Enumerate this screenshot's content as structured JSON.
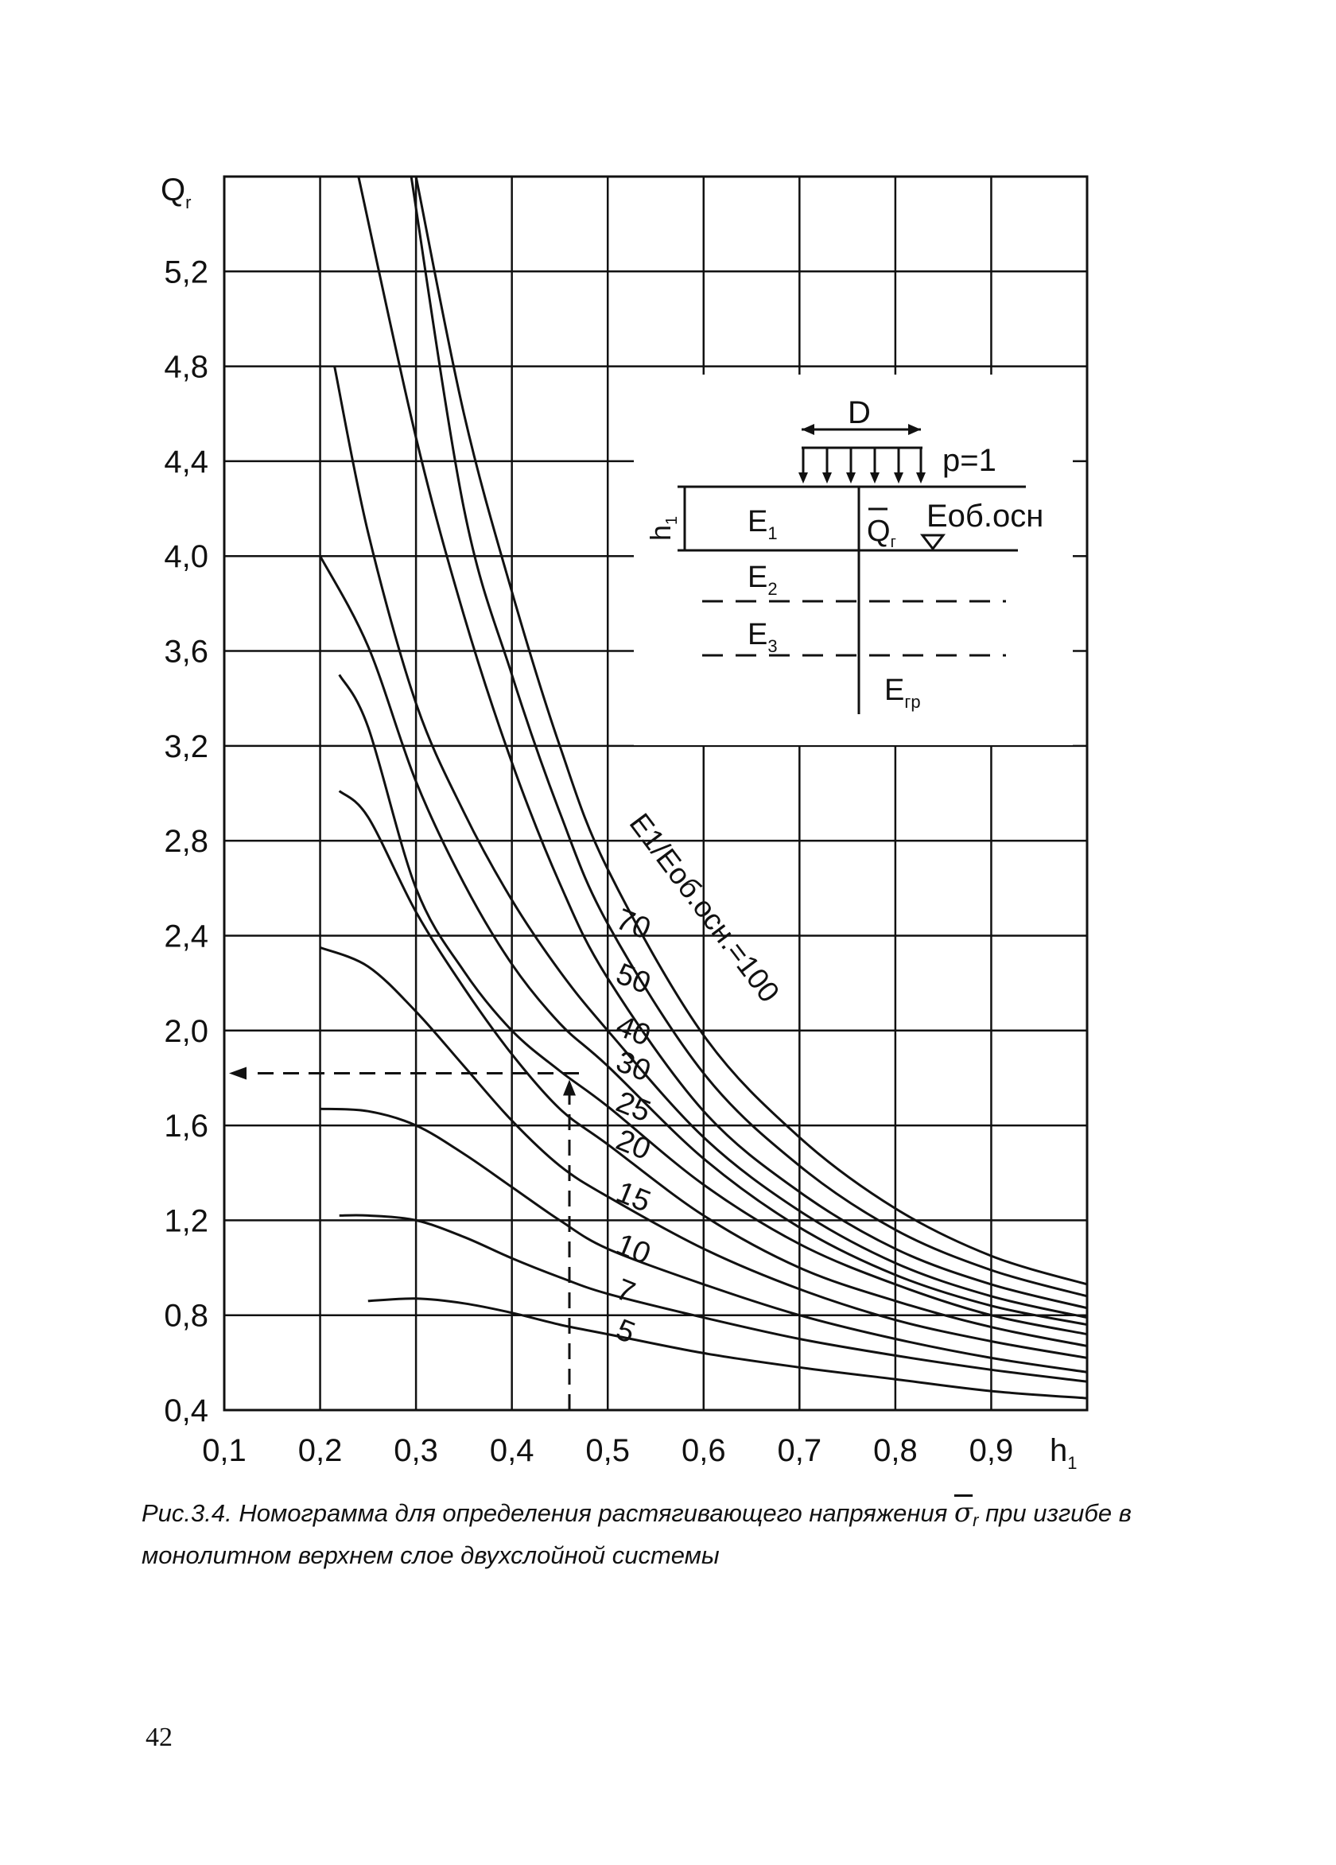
{
  "chart_data": {
    "type": "line",
    "y_axis_label": "Q",
    "y_axis_label_sub": "r",
    "x_axis_label": "h",
    "x_axis_label_sub": "1",
    "xlim": [
      0.1,
      1.0
    ],
    "ylim": [
      0.4,
      5.6
    ],
    "grid": true,
    "x_ticks": [
      0.1,
      0.2,
      0.3,
      0.4,
      0.5,
      0.6,
      0.7,
      0.8,
      0.9
    ],
    "x_tick_labels": [
      "0,1",
      "0,2",
      "0,3",
      "0,4",
      "0,5",
      "0,6",
      "0,7",
      "0,8",
      "0,9"
    ],
    "y_ticks": [
      0.4,
      0.8,
      1.2,
      1.6,
      2.0,
      2.4,
      2.8,
      3.2,
      3.6,
      4.0,
      4.4,
      4.8,
      5.2
    ],
    "y_tick_labels": [
      "0,4",
      "0,8",
      "1,2",
      "1,6",
      "2,0",
      "2,4",
      "2,8",
      "3,2",
      "3,6",
      "4,0",
      "4,4",
      "4,8",
      "5,2"
    ],
    "series_label": "E1/Eоб.осн.=100",
    "series": [
      {
        "name": "100",
        "x": [
          0.3,
          0.35,
          0.4,
          0.45,
          0.5,
          0.6,
          0.7,
          0.8,
          0.9,
          1.0
        ],
        "y": [
          5.6,
          4.6,
          3.85,
          3.2,
          2.68,
          1.98,
          1.55,
          1.25,
          1.05,
          0.93
        ]
      },
      {
        "name": "70",
        "x": [
          0.295,
          0.35,
          0.4,
          0.45,
          0.5,
          0.6,
          0.7,
          0.8,
          0.9,
          1.0
        ],
        "y": [
          5.6,
          4.2,
          3.5,
          2.92,
          2.45,
          1.82,
          1.43,
          1.16,
          0.99,
          0.88
        ]
      },
      {
        "name": "50",
        "x": [
          0.24,
          0.3,
          0.35,
          0.4,
          0.45,
          0.5,
          0.6,
          0.7,
          0.8,
          0.9,
          1.0
        ],
        "y": [
          5.6,
          4.5,
          3.75,
          3.13,
          2.62,
          2.22,
          1.66,
          1.32,
          1.08,
          0.93,
          0.83
        ]
      },
      {
        "name": "40",
        "x": [
          0.215,
          0.25,
          0.3,
          0.35,
          0.4,
          0.45,
          0.5,
          0.6,
          0.7,
          0.8,
          0.9,
          1.0
        ],
        "y": [
          4.8,
          4.1,
          3.38,
          2.92,
          2.55,
          2.25,
          2.0,
          1.55,
          1.24,
          1.02,
          0.88,
          0.79
        ]
      },
      {
        "name": "30",
        "x": [
          0.2,
          0.25,
          0.3,
          0.35,
          0.4,
          0.45,
          0.5,
          0.6,
          0.7,
          0.8,
          0.9,
          1.0
        ],
        "y": [
          4.0,
          3.62,
          3.05,
          2.62,
          2.28,
          2.03,
          1.85,
          1.46,
          1.17,
          0.97,
          0.84,
          0.76
        ]
      },
      {
        "name": "25",
        "x": [
          0.22,
          0.25,
          0.3,
          0.35,
          0.4,
          0.45,
          0.5,
          0.6,
          0.7,
          0.8,
          0.9,
          1.0
        ],
        "y": [
          3.5,
          3.28,
          2.6,
          2.25,
          2.0,
          1.83,
          1.68,
          1.35,
          1.1,
          0.93,
          0.8,
          0.72
        ]
      },
      {
        "name": "20",
        "x": [
          0.22,
          0.25,
          0.3,
          0.35,
          0.4,
          0.45,
          0.5,
          0.6,
          0.7,
          0.8,
          0.9,
          1.0
        ],
        "y": [
          3.01,
          2.9,
          2.5,
          2.18,
          1.9,
          1.67,
          1.52,
          1.22,
          1.0,
          0.86,
          0.75,
          0.67
        ]
      },
      {
        "name": "15",
        "x": [
          0.2,
          0.25,
          0.3,
          0.35,
          0.4,
          0.45,
          0.5,
          0.6,
          0.7,
          0.8,
          0.9,
          1.0
        ],
        "y": [
          2.35,
          2.27,
          2.08,
          1.85,
          1.62,
          1.43,
          1.3,
          1.08,
          0.91,
          0.78,
          0.69,
          0.62
        ]
      },
      {
        "name": "10",
        "x": [
          0.2,
          0.25,
          0.3,
          0.35,
          0.4,
          0.45,
          0.5,
          0.6,
          0.7,
          0.8,
          0.9,
          1.0
        ],
        "y": [
          1.67,
          1.66,
          1.6,
          1.48,
          1.34,
          1.2,
          1.08,
          0.93,
          0.8,
          0.7,
          0.62,
          0.56
        ]
      },
      {
        "name": "7",
        "x": [
          0.22,
          0.25,
          0.3,
          0.35,
          0.4,
          0.45,
          0.5,
          0.6,
          0.7,
          0.8,
          0.9,
          1.0
        ],
        "y": [
          1.22,
          1.22,
          1.2,
          1.13,
          1.04,
          0.96,
          0.89,
          0.79,
          0.7,
          0.63,
          0.57,
          0.52
        ]
      },
      {
        "name": "5",
        "x": [
          0.25,
          0.3,
          0.35,
          0.4,
          0.45,
          0.5,
          0.6,
          0.7,
          0.8,
          0.9,
          1.0
        ],
        "y": [
          0.86,
          0.87,
          0.85,
          0.81,
          0.76,
          0.72,
          0.64,
          0.58,
          0.53,
          0.48,
          0.45
        ]
      }
    ],
    "example_path": {
      "h1": 0.46,
      "Qr": 1.82
    }
  },
  "inset": {
    "D": "D",
    "p": "p=1",
    "h": "h",
    "h_sub": "1",
    "E1": "E",
    "E1_sub": "1",
    "E2": "E",
    "E2_sub": "2",
    "E3": "E",
    "E3_sub": "3",
    "Egr": "E",
    "Egr_sub": "гр",
    "Q": "Q",
    "Q_sub": "г",
    "Eob": "Еоб.осн"
  },
  "caption": {
    "part1": "Рис.3.4. Номограмма для определения растягивающего напряжения",
    "sigma": "σ",
    "sigma_sub": "r",
    "part2": "при изгибе в монолитном верхнем слое двухслойной системы"
  },
  "page_number": "42"
}
